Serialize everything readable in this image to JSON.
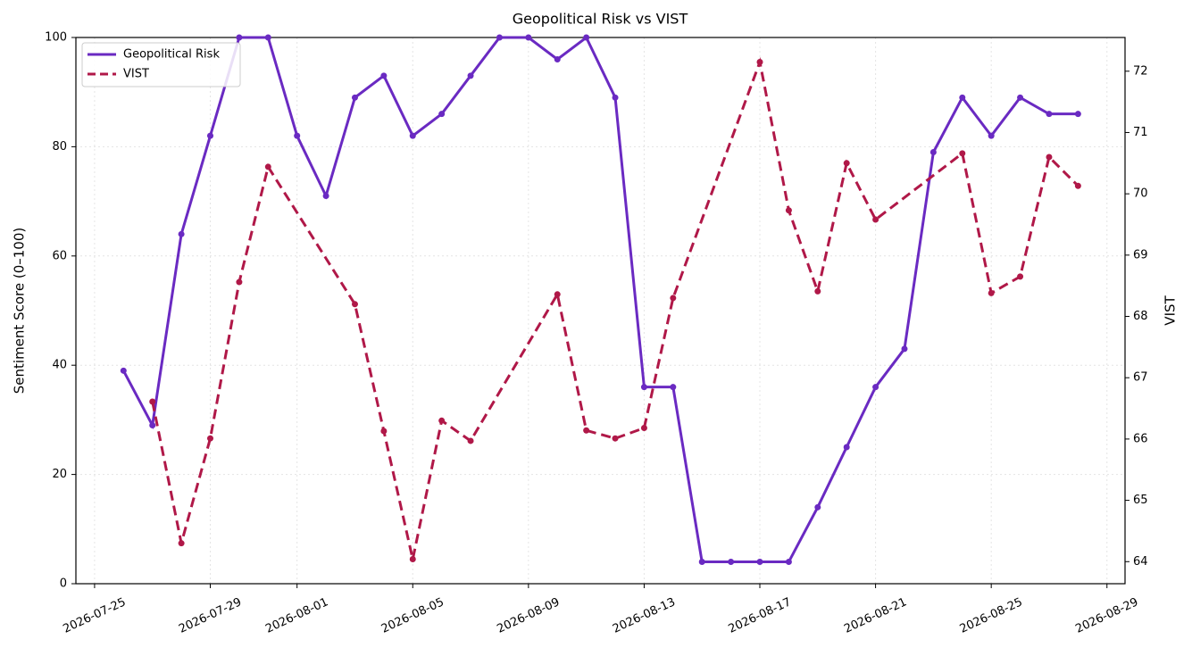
{
  "chart_data": {
    "type": "line",
    "title": "Geopolitical Risk vs VIST",
    "ylabel": "Sentiment Score (0–100)",
    "y2label": "VIST",
    "xlim": [
      "2026-07-24T08:30",
      "2026-08-29T15:00"
    ],
    "xticks": [
      "2026-07-25",
      "2026-07-29",
      "2026-08-01",
      "2026-08-05",
      "2026-08-09",
      "2026-08-13",
      "2026-08-17",
      "2026-08-21",
      "2026-08-25",
      "2026-08-29"
    ],
    "ylim": [
      0,
      100
    ],
    "yticks": [
      0,
      20,
      40,
      60,
      80,
      100
    ],
    "y2lim": [
      63.64,
      72.55
    ],
    "y2ticks": [
      64,
      65,
      66,
      67,
      68,
      69,
      70,
      71,
      72
    ],
    "grid": true,
    "legend": "upper left",
    "series": [
      {
        "name": "Geopolitical Risk",
        "color": "#6a2ac2",
        "linestyle": "solid",
        "axis": "y",
        "x": [
          "2026-07-26",
          "2026-07-27",
          "2026-07-28",
          "2026-07-29",
          "2026-07-30",
          "2026-07-31",
          "2026-08-01",
          "2026-08-02",
          "2026-08-03",
          "2026-08-04",
          "2026-08-05",
          "2026-08-06",
          "2026-08-07",
          "2026-08-08",
          "2026-08-09",
          "2026-08-10",
          "2026-08-11",
          "2026-08-12",
          "2026-08-13",
          "2026-08-14",
          "2026-08-15",
          "2026-08-16",
          "2026-08-17",
          "2026-08-18",
          "2026-08-19",
          "2026-08-20",
          "2026-08-21",
          "2026-08-22",
          "2026-08-23",
          "2026-08-24",
          "2026-08-25",
          "2026-08-26",
          "2026-08-27",
          "2026-08-28"
        ],
        "values": [
          39,
          29,
          64,
          82,
          100,
          100,
          82,
          71,
          89,
          93,
          82,
          86,
          93,
          100,
          100,
          96,
          100,
          89,
          36,
          36,
          4,
          4,
          4,
          4,
          14,
          25,
          36,
          43,
          79,
          89,
          82,
          89,
          86,
          86
        ]
      },
      {
        "name": "VIST",
        "color": "#b01848",
        "linestyle": "dashed",
        "axis": "y2",
        "x": [
          "2026-07-27",
          "2026-07-28",
          "2026-07-29",
          "2026-07-30",
          "2026-07-31",
          "2026-08-03",
          "2026-08-04",
          "2026-08-05",
          "2026-08-06",
          "2026-08-07",
          "2026-08-10",
          "2026-08-11",
          "2026-08-12",
          "2026-08-13",
          "2026-08-14",
          "2026-08-17",
          "2026-08-18",
          "2026-08-19",
          "2026-08-20",
          "2026-08-21",
          "2026-08-24",
          "2026-08-25",
          "2026-08-26",
          "2026-08-27",
          "2026-08-28"
        ],
        "values": [
          66.61,
          64.3,
          66.01,
          68.56,
          70.44,
          68.2,
          66.13,
          64.04,
          66.3,
          65.97,
          68.36,
          66.14,
          66.01,
          66.18,
          68.3,
          72.15,
          69.73,
          68.41,
          70.5,
          69.58,
          70.66,
          68.38,
          68.65,
          70.6,
          70.13
        ]
      }
    ]
  }
}
